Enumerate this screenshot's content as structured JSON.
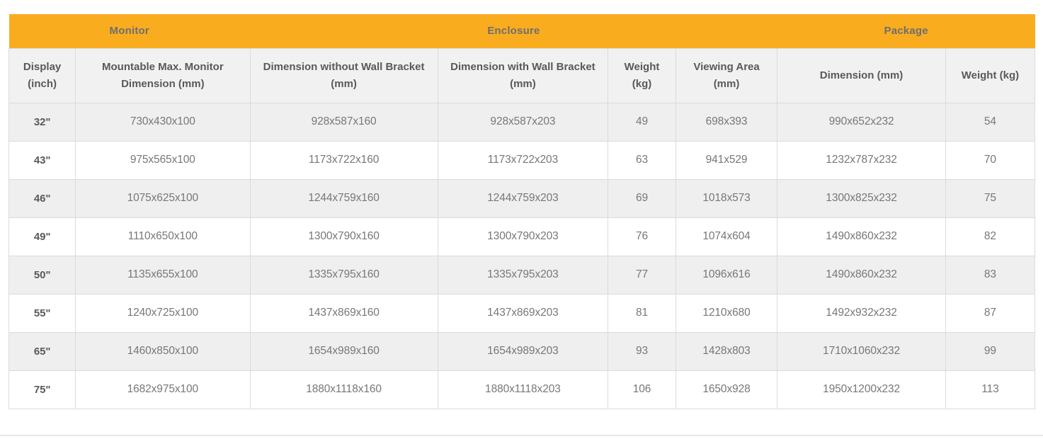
{
  "colors": {
    "accent": "#FAAC1F",
    "group-text": "#6D6E71",
    "header-bg": "#F1F1F1",
    "stripe-bg": "#EFEFEF",
    "header-text": "#58595B",
    "data-text": "#76777B",
    "border": "#DBDBDB",
    "rule": "#E8E8EA"
  },
  "table": {
    "groups": [
      {
        "label": "Monitor",
        "colspan": 2
      },
      {
        "label": "Enclosure",
        "colspan": 4
      },
      {
        "label": "Package",
        "colspan": 2
      }
    ],
    "columns": [
      "Display (inch)",
      "Mountable Max. Monitor Dimension (mm)",
      "Dimension without Wall Bracket (mm)",
      "Dimension with Wall Bracket (mm)",
      "Weight (kg)",
      "Viewing Area (mm)",
      "Dimension (mm)",
      "Weight (kg)"
    ],
    "rows": [
      [
        "32\"",
        "730x430x100",
        "928x587x160",
        "928x587x203",
        "49",
        "698x393",
        "990x652x232",
        "54"
      ],
      [
        "43\"",
        "975x565x100",
        "1173x722x160",
        "1173x722x203",
        "63",
        "941x529",
        "1232x787x232",
        "70"
      ],
      [
        "46\"",
        "1075x625x100",
        "1244x759x160",
        "1244x759x203",
        "69",
        "1018x573",
        "1300x825x232",
        "75"
      ],
      [
        "49\"",
        "1110x650x100",
        "1300x790x160",
        "1300x790x203",
        "76",
        "1074x604",
        "1490x860x232",
        "82"
      ],
      [
        "50\"",
        "1135x655x100",
        "1335x795x160",
        "1335x795x203",
        "77",
        "1096x616",
        "1490x860x232",
        "83"
      ],
      [
        "55\"",
        "1240x725x100",
        "1437x869x160",
        "1437x869x203",
        "81",
        "1210x680",
        "1492x932x232",
        "87"
      ],
      [
        "65\"",
        "1460x850x100",
        "1654x989x160",
        "1654x989x203",
        "93",
        "1428x803",
        "1710x1060x232",
        "99"
      ],
      [
        "75\"",
        "1682x975x100",
        "1880x1118x160",
        "1880x1118x203",
        "106",
        "1650x928",
        "1950x1200x232",
        "113"
      ]
    ]
  }
}
